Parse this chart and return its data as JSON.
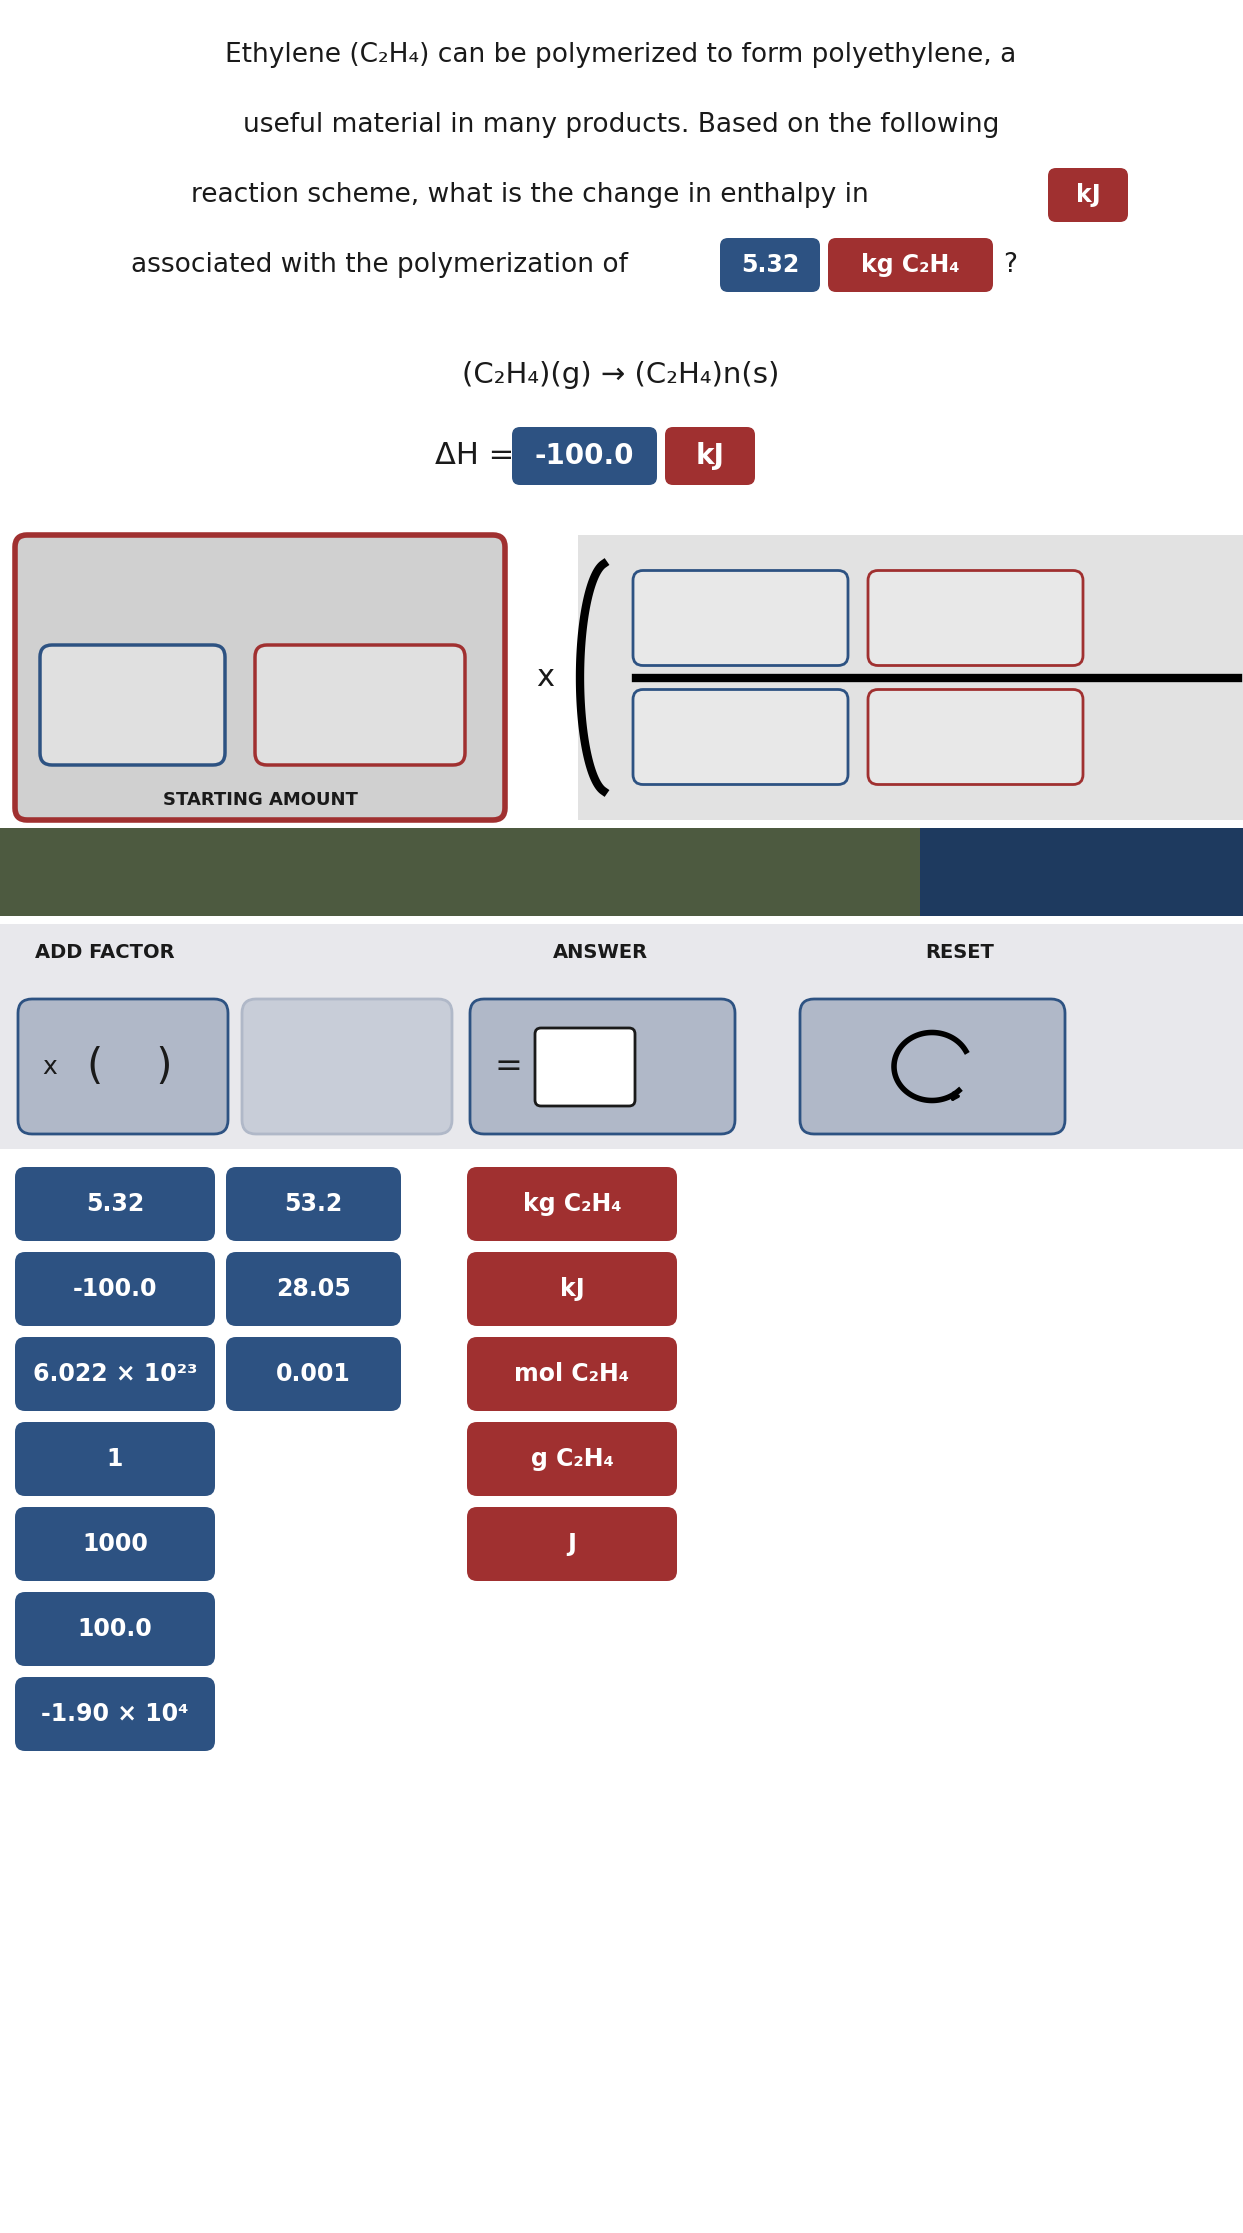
{
  "bg_white": "#ffffff",
  "bg_light": "#e8e8ec",
  "bg_dark_bar_left": "#4d5a40",
  "bg_dark_bar_right": "#1e3a5f",
  "blue_btn": "#2d5282",
  "red_btn": "#a03030",
  "blue_border": "#2d5282",
  "red_border": "#a03030",
  "silver_btn": "#b0b8c8",
  "silver_btn2": "#c8cdd8",
  "text_dark": "#1a1a1a",
  "text_white": "#ffffff",
  "title_line1": "Ethylene (C₂H₄) can be polymerized to form polyethylene, a",
  "title_line2": "useful material in many products. Based on the following",
  "title_line3": "reaction scheme, what is the change in enthalpy in",
  "title_kJ_btn": "kJ",
  "title_line4": "associated with the polymerization of",
  "title_532_btn": "5.32",
  "title_kg_btn": "kg C₂H₄",
  "reaction_eq": "(C₂H₄)(g) → (C₂H₄)n(s)",
  "dH_label": "ΔH =",
  "dH_value_btn": "-100.0",
  "dH_unit_btn": "kJ",
  "starting_amount_label": "STARTING AMOUNT",
  "add_factor_label": "ADD FACTOR",
  "answer_label": "ANSWER",
  "reset_label": "RESET",
  "btn_col1": [
    "5.32",
    "-100.0",
    "6.022 × 10²³",
    "1",
    "1000",
    "100.0",
    "-1.90 × 10⁴"
  ],
  "btn_col2": [
    "53.2",
    "28.05",
    "0.001",
    "",
    "",
    "",
    ""
  ],
  "btn_col3": [
    "kg C₂H₄",
    "kJ",
    "mol C₂H₄",
    "g C₂H₄",
    "J",
    "",
    ""
  ]
}
